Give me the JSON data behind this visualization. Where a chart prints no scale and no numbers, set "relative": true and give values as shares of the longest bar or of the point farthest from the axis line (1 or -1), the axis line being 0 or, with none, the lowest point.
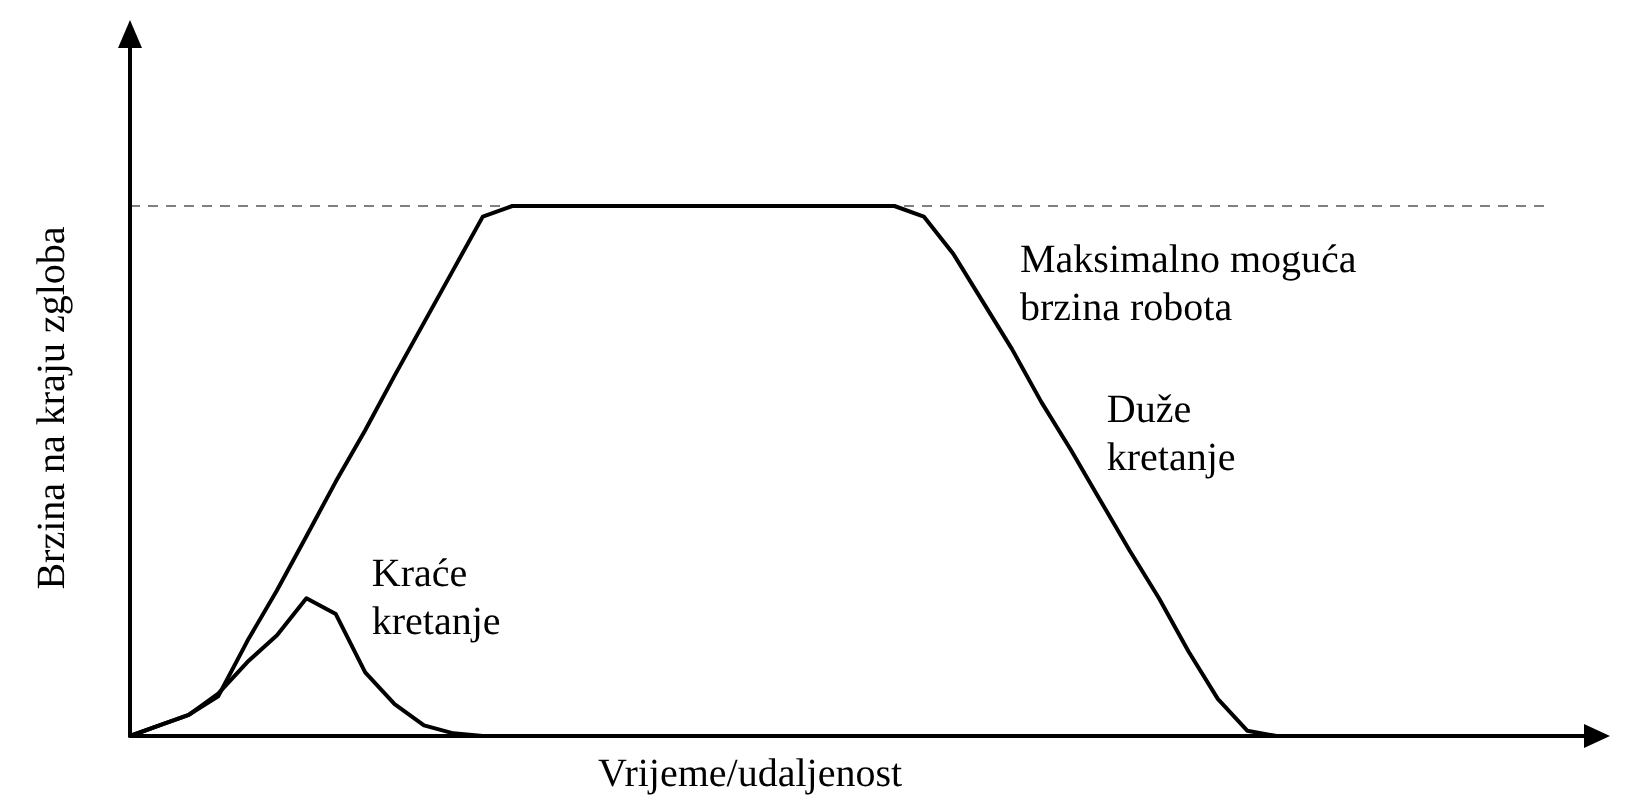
{
  "chart_data": {
    "type": "line",
    "relative": true,
    "xlabel": "Vrijeme/udaljenost",
    "ylabel": "Brzina na kraju zgloba",
    "categories": [
      null,
      null,
      null,
      null,
      null,
      null,
      null,
      null,
      null,
      null,
      null,
      null,
      null,
      null,
      null,
      null,
      null,
      null,
      null,
      null,
      null,
      null,
      null,
      null,
      null,
      null,
      null,
      null,
      null,
      null,
      null,
      null,
      null,
      null,
      null,
      null,
      null,
      null,
      null,
      null,
      null,
      null,
      null,
      null,
      null,
      null,
      null,
      null,
      null,
      null,
      null
    ],
    "series": [
      {
        "name": "Kraće kretanje",
        "color": "#000000",
        "values": [
          0,
          0.02,
          0.04,
          0.08,
          0.14,
          0.19,
          0.26,
          0.23,
          0.12,
          0.06,
          0.02,
          0.005,
          0,
          null,
          null,
          null,
          null,
          null,
          null,
          null,
          null,
          null,
          null,
          null,
          null,
          null,
          null,
          null,
          null,
          null,
          null,
          null,
          null,
          null,
          null,
          null,
          null,
          null,
          null,
          null,
          null,
          null,
          null,
          null,
          null,
          null,
          null,
          null,
          null,
          null,
          null
        ]
      },
      {
        "name": "Duže kretanje",
        "color": "#000000",
        "values": [
          0,
          0.02,
          0.04,
          0.075,
          0.18,
          0.275,
          0.377,
          0.48,
          0.577,
          0.68,
          0.78,
          0.88,
          0.98,
          1,
          1,
          1,
          1,
          1,
          1,
          1,
          1,
          1,
          1,
          1,
          1,
          1,
          1,
          0.98,
          0.91,
          0.82,
          0.73,
          0.63,
          0.54,
          0.445,
          0.35,
          0.26,
          0.16,
          0.07,
          0.01,
          0,
          null,
          null,
          null,
          null,
          null,
          null,
          null,
          null,
          null,
          null,
          null
        ]
      }
    ],
    "line_style": "solid",
    "ref_lines": [
      {
        "axis": "y",
        "value": 1,
        "label": "Maksimalno moguća brzina robota",
        "color": "#808080",
        "line_style": "dashed"
      }
    ]
  }
}
